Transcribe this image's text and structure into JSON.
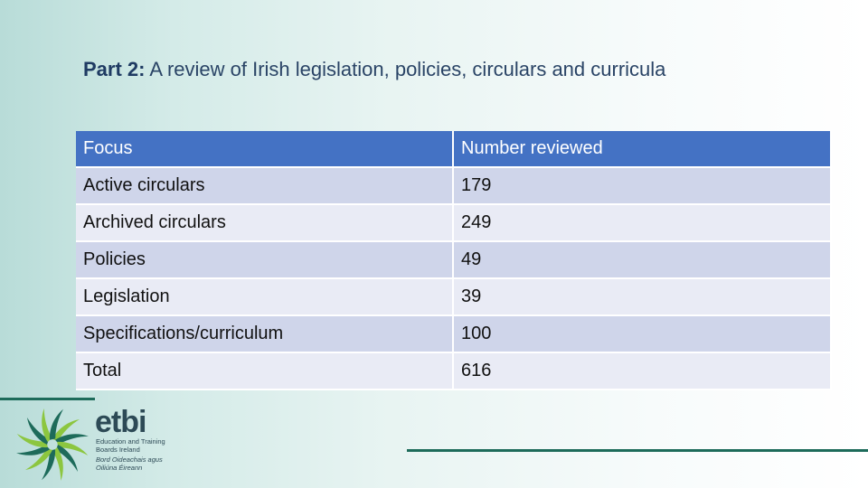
{
  "slide": {
    "title_prefix": "Part 2:",
    "title_rest": " A review of Irish legislation, policies, circulars and curricula"
  },
  "table": {
    "headers": [
      "Focus",
      "Number reviewed"
    ],
    "rows": [
      [
        "Active circulars",
        "179"
      ],
      [
        "Archived circulars",
        "249"
      ],
      [
        "Policies",
        "49"
      ],
      [
        "Legislation",
        "39"
      ],
      [
        "Specifications/curriculum",
        "100"
      ],
      [
        "Total",
        "616"
      ]
    ]
  },
  "logo": {
    "wordmark": "etbi",
    "english_line1": "Education and Training",
    "english_line2": "Boards Ireland",
    "irish_line1": "Bord Oideachais agus",
    "irish_line2": "Oiliúna Éireann",
    "colors": {
      "green_light": "#8cc63f",
      "green_dark": "#1d6b5a",
      "text": "#2d4a56"
    }
  },
  "colors": {
    "header_bg": "#4472c4",
    "row_odd": "#cfd5ea",
    "row_even": "#e9ebf5",
    "title": "#1f3b63"
  }
}
